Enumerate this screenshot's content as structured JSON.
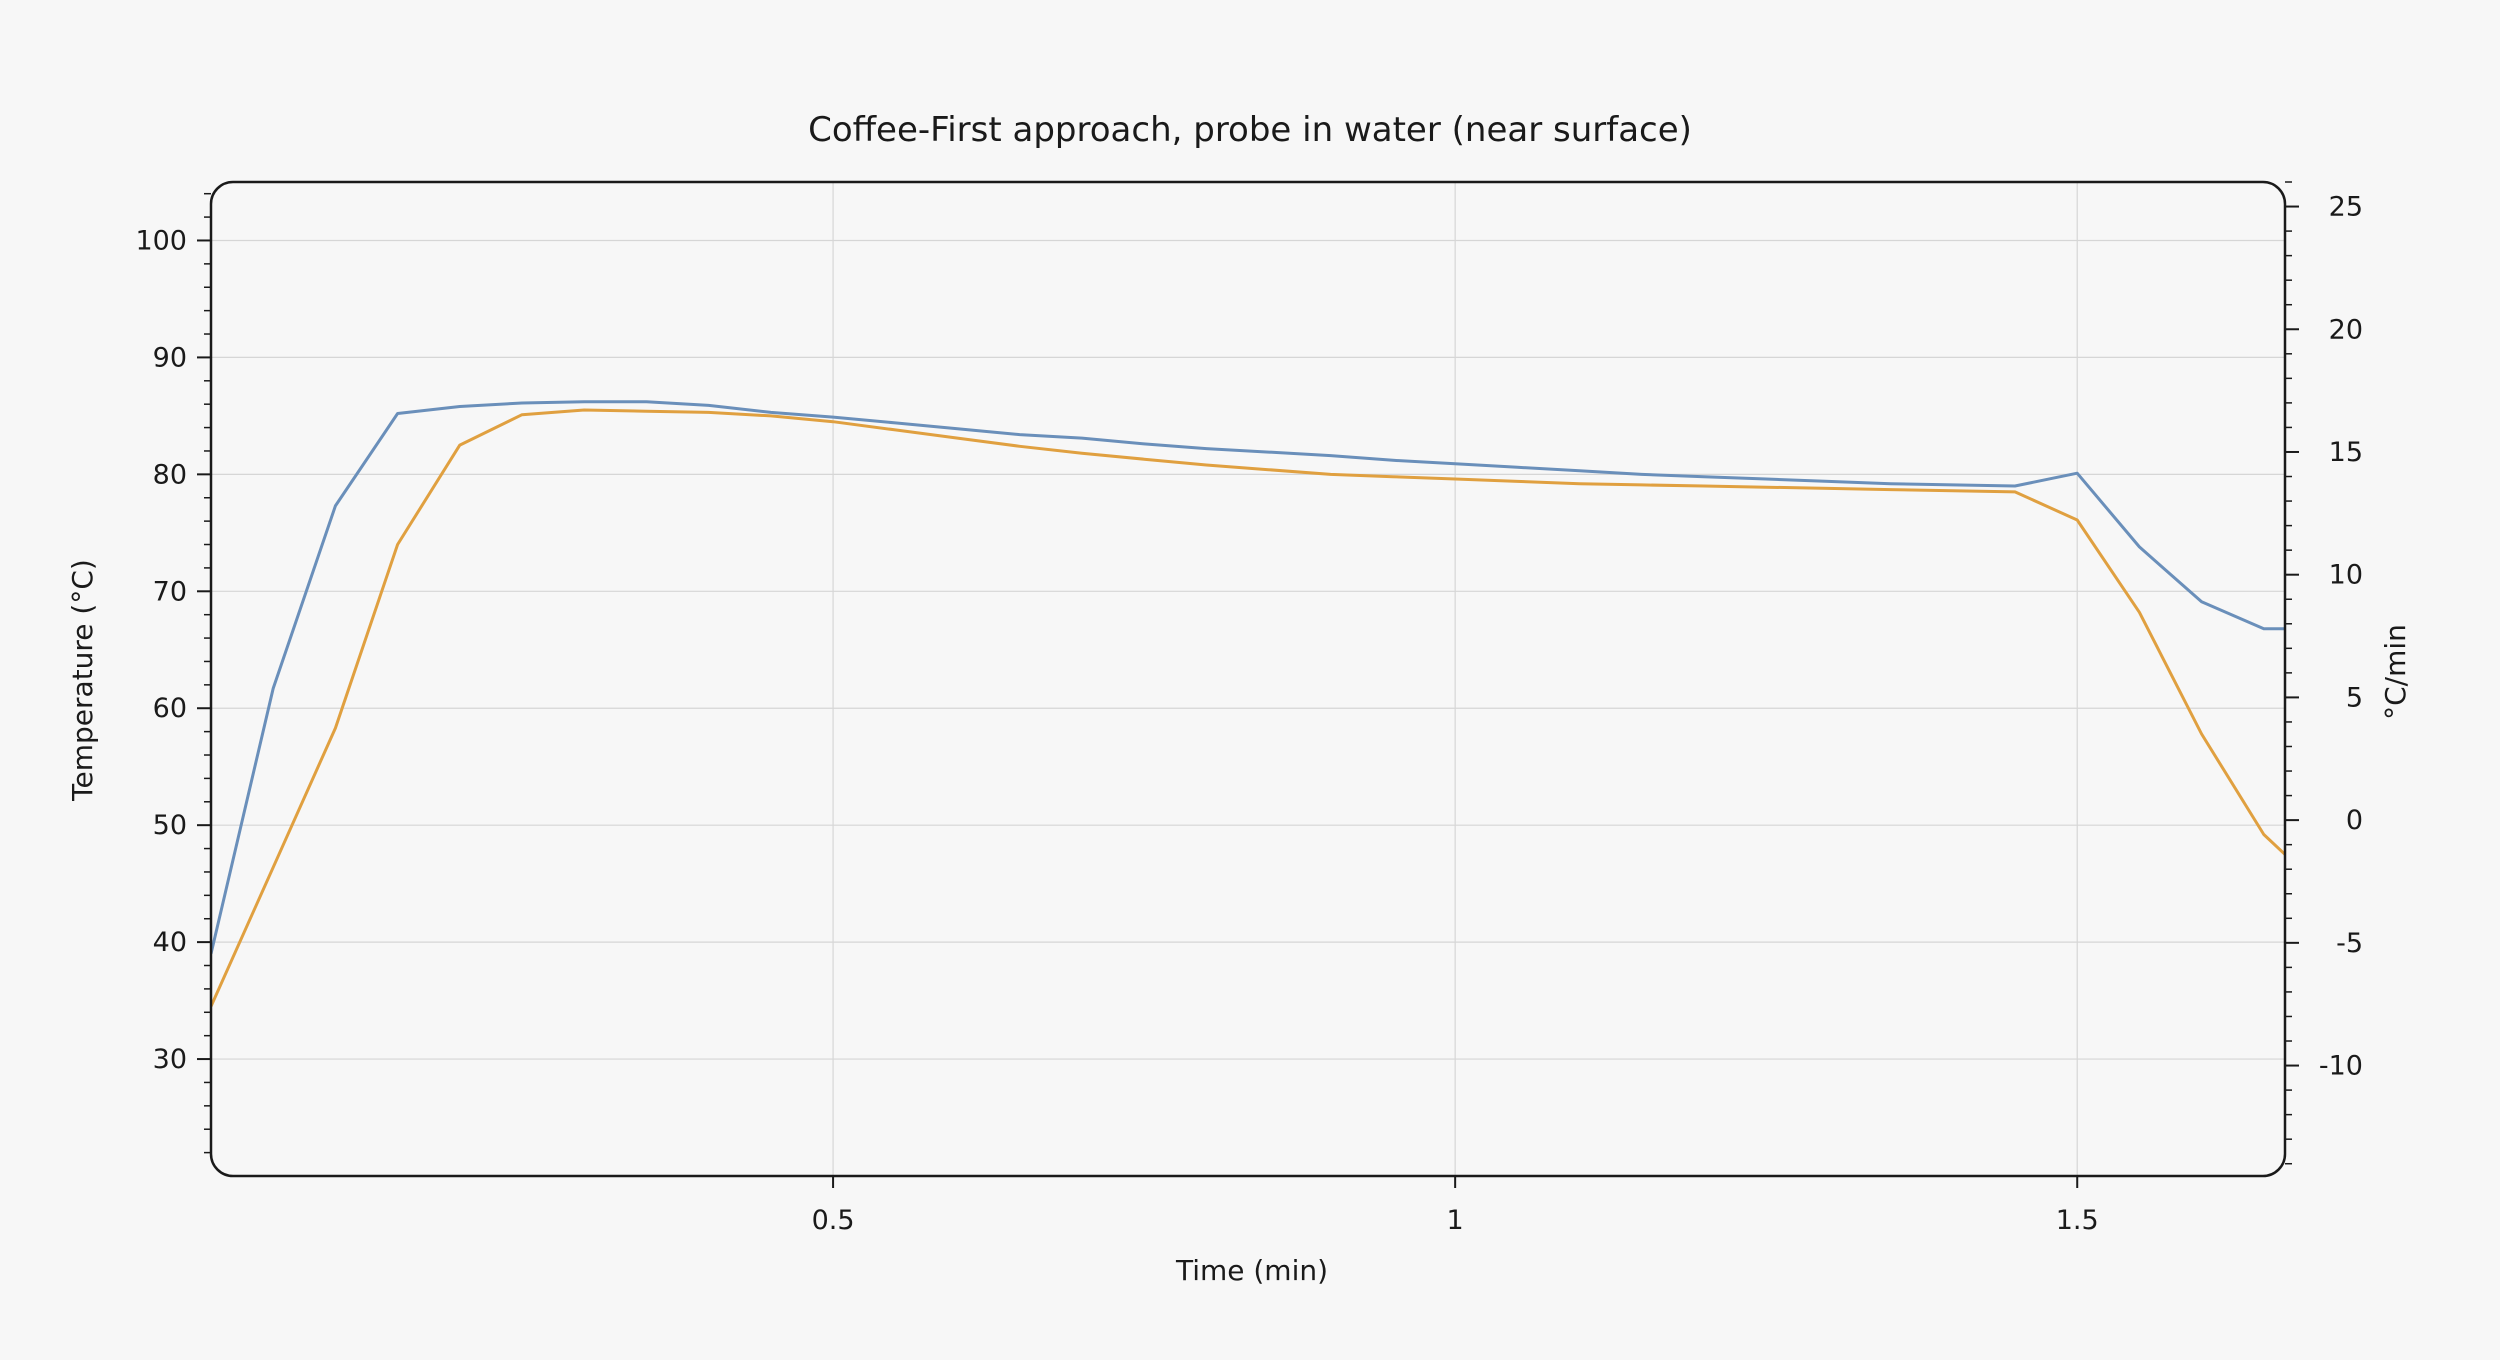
{
  "chart_data": {
    "type": "line",
    "title": "Coffee-First approach, probe in water (near surface)",
    "xlabel": "Time (min)",
    "ylabel": "Temperature (°C)",
    "y2label": "°C/min",
    "xlim": [
      0,
      1.667
    ],
    "ylim": [
      20,
      105
    ],
    "y2lim": [
      -14.5,
      26
    ],
    "x_ticks": [
      0.5,
      1,
      1.5
    ],
    "x_tick_labels": [
      "0.5",
      "1",
      "1.5"
    ],
    "y_ticks": [
      30,
      40,
      50,
      60,
      70,
      80,
      90,
      100
    ],
    "y_tick_labels": [
      "30",
      "40",
      "50",
      "60",
      "70",
      "80",
      "90",
      "100"
    ],
    "y2_ticks": [
      -10,
      -5,
      0,
      5,
      10,
      15,
      20,
      25
    ],
    "y2_tick_labels": [
      "-10",
      "-5",
      "0",
      "5",
      "10",
      "15",
      "20",
      "25"
    ],
    "grid": true,
    "series": [
      {
        "color": "#6a8fba",
        "x": [
          0,
          0.05,
          0.1,
          0.15,
          0.2,
          0.25,
          0.3,
          0.35,
          0.4,
          0.45,
          0.5,
          0.55,
          0.6,
          0.65,
          0.7,
          0.75,
          0.8,
          0.85,
          0.9,
          0.95,
          1.0,
          1.05,
          1.1,
          1.15,
          1.2,
          1.25,
          1.3,
          1.35,
          1.4,
          1.45,
          1.5,
          1.55,
          1.6,
          1.65,
          1.667
        ],
        "values": [
          39,
          61.7,
          77.3,
          85.2,
          85.8,
          86.1,
          86.2,
          86.2,
          85.9,
          85.3,
          84.9,
          84.4,
          83.9,
          83.4,
          83.1,
          82.6,
          82.2,
          81.9,
          81.6,
          81.2,
          80.9,
          80.6,
          80.3,
          80.0,
          79.8,
          79.6,
          79.4,
          79.2,
          79.1,
          79.0,
          80.1,
          73.8,
          69.1,
          66.8,
          66.8
        ]
      },
      {
        "color": "#e0a040",
        "x": [
          0,
          0.05,
          0.1,
          0.15,
          0.2,
          0.25,
          0.3,
          0.35,
          0.4,
          0.45,
          0.5,
          0.55,
          0.6,
          0.65,
          0.7,
          0.75,
          0.8,
          0.85,
          0.9,
          0.95,
          1.0,
          1.05,
          1.1,
          1.15,
          1.2,
          1.25,
          1.3,
          1.35,
          1.4,
          1.45,
          1.5,
          1.55,
          1.6,
          1.65,
          1.667
        ],
        "values": [
          34.5,
          46.4,
          58.3,
          74.0,
          82.5,
          85.1,
          85.5,
          85.4,
          85.3,
          85.0,
          84.5,
          83.8,
          83.1,
          82.4,
          81.8,
          81.3,
          80.8,
          80.4,
          80.0,
          79.8,
          79.6,
          79.4,
          79.2,
          79.1,
          79.0,
          78.9,
          78.8,
          78.7,
          78.6,
          78.5,
          76.1,
          68.2,
          57.8,
          49.2,
          47.5
        ]
      }
    ]
  }
}
